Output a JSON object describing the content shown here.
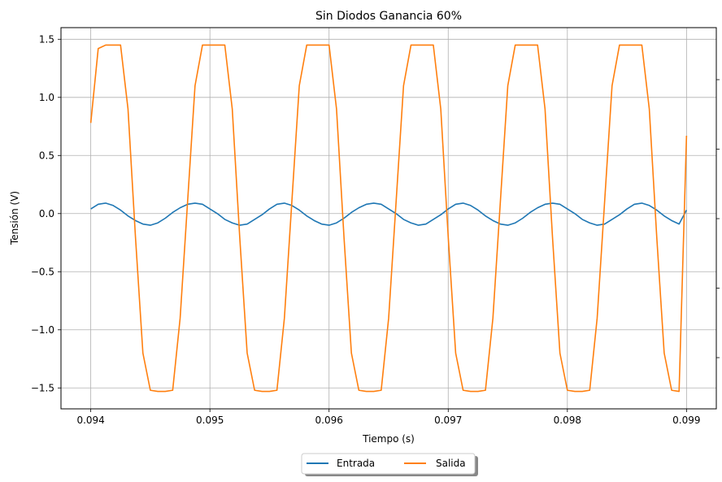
{
  "chart_data": {
    "type": "line",
    "title": "Sin Diodos Ganancia 60%",
    "xlabel": "Tiempo (s)",
    "ylabel": "Tensión (V)",
    "xlim": [
      0.09375,
      0.09925
    ],
    "ylim": [
      -1.68,
      1.6
    ],
    "xticks": [
      0.094,
      0.095,
      0.096,
      0.097,
      0.098,
      0.099
    ],
    "xtick_labels": [
      "0.094",
      "0.095",
      "0.096",
      "0.097",
      "0.098",
      "0.099"
    ],
    "yticks": [
      1.5,
      1.0,
      0.5,
      0.0,
      -0.5,
      -1.0,
      -1.5
    ],
    "ytick_labels": [
      "1.5",
      "1.0",
      "0.5",
      "0.0",
      "−0.5",
      "−1.0",
      "−1.5"
    ],
    "grid": true,
    "legend_position": "below",
    "x": [
      0.094,
      0.0940625,
      0.094125,
      0.0941875,
      0.09425,
      0.0943125,
      0.094375,
      0.0944375,
      0.0945,
      0.0945625,
      0.094625,
      0.0946875,
      0.09475,
      0.0948125,
      0.094875,
      0.0949375,
      0.095,
      0.0950625,
      0.095125,
      0.0951875,
      0.09525,
      0.0953125,
      0.095375,
      0.0954375,
      0.0955,
      0.0955625,
      0.095625,
      0.0956875,
      0.09575,
      0.0958125,
      0.095875,
      0.0959375,
      0.096,
      0.0960625,
      0.096125,
      0.0961875,
      0.09625,
      0.0963125,
      0.096375,
      0.0964375,
      0.0965,
      0.0965625,
      0.096625,
      0.0966875,
      0.09675,
      0.0968125,
      0.096875,
      0.0969375,
      0.097,
      0.0970625,
      0.097125,
      0.0971875,
      0.09725,
      0.0973125,
      0.097375,
      0.0974375,
      0.0975,
      0.0975625,
      0.097625,
      0.0976875,
      0.09775,
      0.0978125,
      0.097875,
      0.0979375,
      0.098,
      0.0980625,
      0.098125,
      0.0981875,
      0.09825,
      0.0983125,
      0.098375,
      0.0984375,
      0.0985,
      0.0985625,
      0.098625,
      0.0986875,
      0.09875,
      0.0988125,
      0.098875,
      0.0989375,
      0.099
    ],
    "series": [
      {
        "name": "Entrada",
        "color": "#1f77b4",
        "values": [
          0.04,
          0.08,
          0.09,
          0.07,
          0.03,
          -0.02,
          -0.06,
          -0.09,
          -0.1,
          -0.08,
          -0.04,
          0.01,
          0.05,
          0.08,
          0.09,
          0.08,
          0.04,
          0.0,
          -0.05,
          -0.08,
          -0.1,
          -0.09,
          -0.05,
          -0.01,
          0.04,
          0.08,
          0.09,
          0.07,
          0.03,
          -0.02,
          -0.06,
          -0.09,
          -0.1,
          -0.08,
          -0.04,
          0.01,
          0.05,
          0.08,
          0.09,
          0.08,
          0.04,
          0.0,
          -0.05,
          -0.08,
          -0.1,
          -0.09,
          -0.05,
          -0.01,
          0.04,
          0.08,
          0.09,
          0.07,
          0.03,
          -0.02,
          -0.06,
          -0.09,
          -0.1,
          -0.08,
          -0.04,
          0.01,
          0.05,
          0.08,
          0.09,
          0.08,
          0.04,
          0.0,
          -0.05,
          -0.08,
          -0.1,
          -0.09,
          -0.05,
          -0.01,
          0.04,
          0.08,
          0.09,
          0.07,
          0.03,
          -0.02,
          -0.06,
          -0.09,
          0.03
        ]
      },
      {
        "name": "Salida",
        "color": "#ff7f0e",
        "values": [
          0.78,
          1.42,
          1.45,
          1.45,
          1.45,
          0.9,
          -0.2,
          -1.2,
          -1.52,
          -1.53,
          -1.53,
          -1.52,
          -0.9,
          0.1,
          1.1,
          1.45,
          1.45,
          1.45,
          1.45,
          0.9,
          -0.2,
          -1.2,
          -1.52,
          -1.53,
          -1.53,
          -1.52,
          -0.9,
          0.1,
          1.1,
          1.45,
          1.45,
          1.45,
          1.45,
          0.9,
          -0.2,
          -1.2,
          -1.52,
          -1.53,
          -1.53,
          -1.52,
          -0.9,
          0.1,
          1.1,
          1.45,
          1.45,
          1.45,
          1.45,
          0.9,
          -0.2,
          -1.2,
          -1.52,
          -1.53,
          -1.53,
          -1.52,
          -0.9,
          0.1,
          1.1,
          1.45,
          1.45,
          1.45,
          1.45,
          0.9,
          -0.2,
          -1.2,
          -1.52,
          -1.53,
          -1.53,
          -1.52,
          -0.9,
          0.1,
          1.1,
          1.45,
          1.45,
          1.45,
          1.45,
          0.9,
          -0.2,
          -1.2,
          -1.52,
          -1.53,
          0.67
        ]
      }
    ]
  }
}
